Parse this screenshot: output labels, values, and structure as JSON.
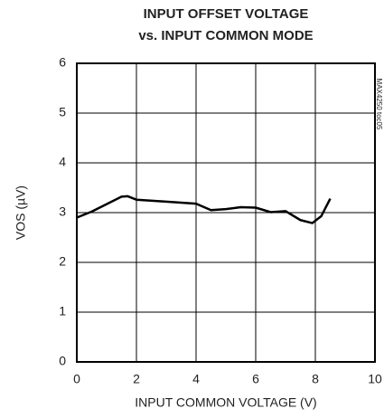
{
  "chart_data": {
    "type": "line",
    "title": [
      "INPUT OFFSET VOLTAGE",
      "vs. INPUT COMMON MODE"
    ],
    "xlabel": "INPUT COMMON VOLTAGE (V)",
    "ylabel": "VOS (µV)",
    "annotation": "MAX4250 toc05",
    "x": [
      0,
      0.5,
      1,
      1.5,
      1.7,
      2,
      3,
      4,
      4.5,
      5,
      5.5,
      6,
      6.5,
      7,
      7.5,
      7.9,
      8.2,
      8.5
    ],
    "series": [
      {
        "name": "VOS",
        "color": "#000000",
        "values": [
          2.9,
          3.02,
          3.17,
          3.32,
          3.33,
          3.26,
          3.22,
          3.18,
          3.05,
          3.07,
          3.11,
          3.1,
          3.01,
          3.03,
          2.85,
          2.79,
          2.93,
          3.28
        ]
      }
    ],
    "xlim": [
      0,
      10
    ],
    "xticks": [
      0,
      2,
      4,
      6,
      8,
      10
    ],
    "ylim": [
      0,
      6
    ],
    "yticks": [
      0,
      1,
      2,
      3,
      4,
      5,
      6
    ],
    "grid": true
  }
}
